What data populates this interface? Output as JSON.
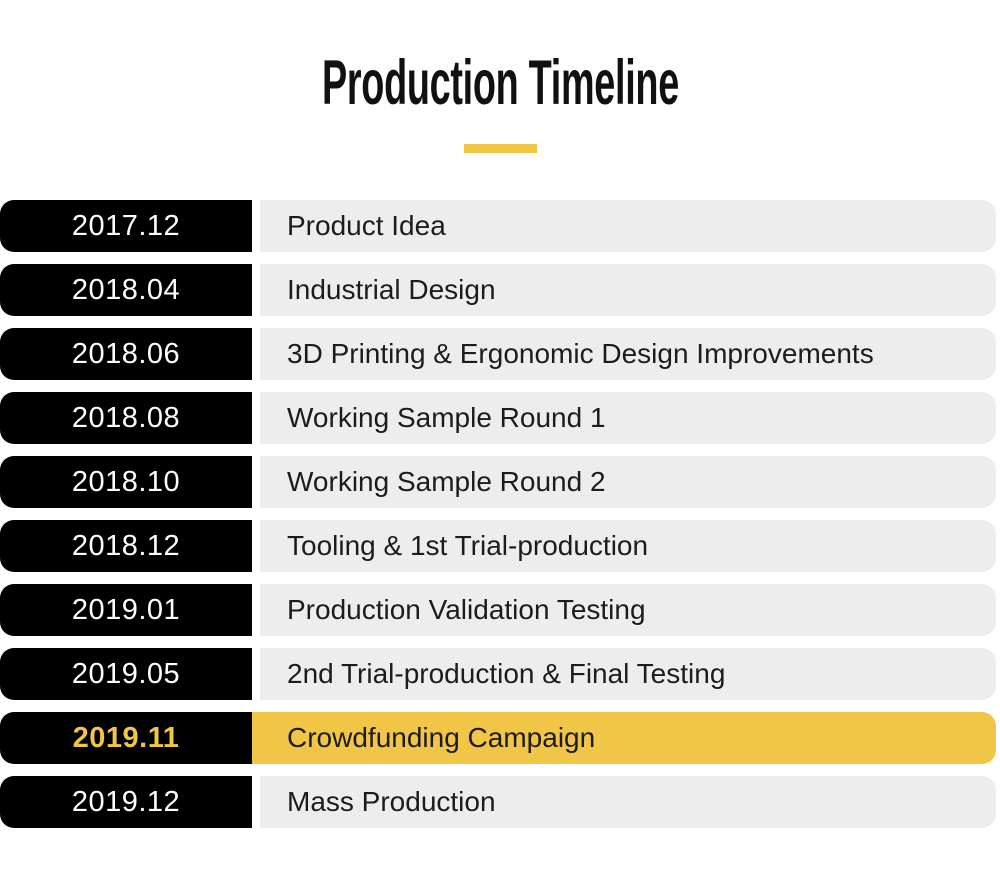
{
  "page": {
    "title": "Production Timeline"
  },
  "colors": {
    "accent": "#F1C545",
    "row_bg": "#EDEDED",
    "badge_bg": "#000000",
    "badge_text": "#FFFFFF",
    "row_text": "#1C1C1C",
    "title_color": "#111111"
  },
  "timeline": {
    "rows": [
      {
        "date": "2017.12",
        "label": "Product Idea",
        "highlighted": false
      },
      {
        "date": "2018.04",
        "label": "Industrial Design",
        "highlighted": false
      },
      {
        "date": "2018.06",
        "label": "3D Printing & Ergonomic Design Improvements",
        "highlighted": false
      },
      {
        "date": "2018.08",
        "label": "Working Sample Round 1",
        "highlighted": false
      },
      {
        "date": "2018.10",
        "label": "Working Sample Round 2",
        "highlighted": false
      },
      {
        "date": "2018.12",
        "label": "Tooling & 1st Trial-production",
        "highlighted": false
      },
      {
        "date": "2019.01",
        "label": "Production Validation Testing",
        "highlighted": false
      },
      {
        "date": "2019.05",
        "label": "2nd Trial-production & Final Testing",
        "highlighted": false
      },
      {
        "date": "2019.11",
        "label": "Crowdfunding Campaign",
        "highlighted": true
      },
      {
        "date": "2019.12",
        "label": "Mass Production",
        "highlighted": false
      }
    ]
  }
}
